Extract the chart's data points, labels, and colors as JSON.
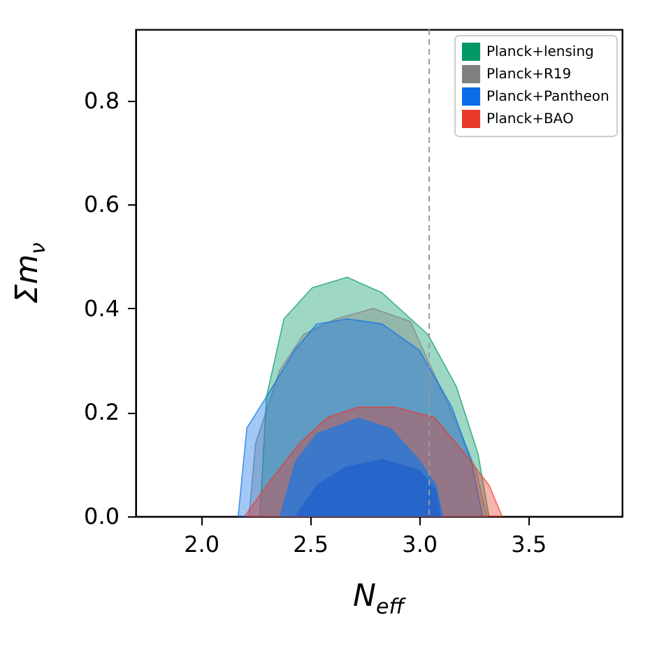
{
  "chart_data": {
    "type": "area",
    "xlabel": "N$_{eff}$",
    "ylabel": "Σm$_{ν}$",
    "xlim": [
      1.7,
      3.93
    ],
    "ylim": [
      0,
      0.937
    ],
    "xticks": [
      {
        "value": 2,
        "label": "2.0"
      },
      {
        "value": 2.5,
        "label": "2.5"
      },
      {
        "value": 3,
        "label": "3.0"
      },
      {
        "value": 3.5,
        "label": "3.5"
      }
    ],
    "yticks": [
      {
        "value": 0,
        "label": "0.0"
      },
      0.2,
      0.4,
      0.6,
      0.8
    ],
    "grid": false,
    "legend": "top right",
    "ref_lines": [
      {
        "axis": "x",
        "value": 3.046,
        "color": "#999999",
        "line_style": "dashed"
      }
    ],
    "series": [
      {
        "name": "Planck+lensing",
        "color": "#009966",
        "x": [
          2.27,
          2.3,
          2.38,
          2.51,
          2.67,
          2.83,
          3.04,
          3.17,
          3.27,
          3.32
        ],
        "values": [
          0,
          0.23,
          0.38,
          0.44,
          0.46,
          0.43,
          0.35,
          0.25,
          0.12,
          0
        ]
      },
      {
        "name": "Planck+R19",
        "color": "#808080",
        "x": [
          2.22,
          2.25,
          2.36,
          2.47,
          2.62,
          2.79,
          2.96,
          3.04,
          3.15,
          3.26,
          3.31
        ],
        "values": [
          0,
          0.14,
          0.28,
          0.35,
          0.38,
          0.4,
          0.375,
          0.3,
          0.2,
          0.09,
          0
        ]
      },
      {
        "name": "Planck+Pantheon",
        "color": "#0a6ee8",
        "x": [
          2.17,
          2.21,
          2.3,
          2.43,
          2.53,
          2.67,
          2.83,
          3.0,
          3.15,
          3.24,
          3.29
        ],
        "values": [
          0,
          0.17,
          0.23,
          0.32,
          0.37,
          0.38,
          0.37,
          0.32,
          0.21,
          0.105,
          0
        ]
      },
      {
        "name": "Planck+BAO",
        "color": "#e8392a",
        "x": [
          2.2,
          2.32,
          2.45,
          2.58,
          2.72,
          2.89,
          3.07,
          3.21,
          3.32,
          3.38
        ],
        "values": [
          0,
          0.07,
          0.14,
          0.19,
          0.21,
          0.21,
          0.19,
          0.12,
          0.06,
          0
        ]
      },
      {
        "color": "#1f78e0",
        "x": [
          2.36,
          2.43,
          2.53,
          2.72,
          2.87,
          3.0,
          3.08,
          3.11
        ],
        "values": [
          0,
          0.105,
          0.16,
          0.19,
          0.17,
          0.11,
          0.06,
          0
        ]
      },
      {
        "color": "#1f5fc8",
        "x": [
          2.43,
          2.53,
          2.66,
          2.83,
          3.0,
          3.08,
          3.1
        ],
        "values": [
          0,
          0.06,
          0.095,
          0.11,
          0.09,
          0.05,
          0
        ]
      }
    ]
  }
}
